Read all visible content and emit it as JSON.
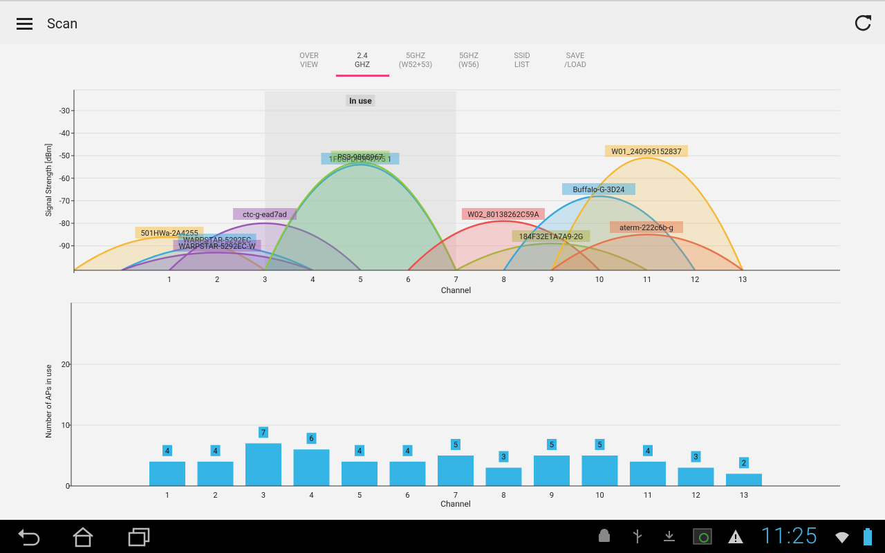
{
  "app": {
    "title": "Scan"
  },
  "tabs": [
    {
      "line1": "OVER",
      "line2": "VIEW",
      "active": false
    },
    {
      "line1": "2.4",
      "line2": "GHZ",
      "active": true
    },
    {
      "line1": "5GHZ",
      "line2": "(W52+53)",
      "active": false
    },
    {
      "line1": "5GHZ",
      "line2": "(W56)",
      "active": false
    },
    {
      "line1": "SSID",
      "line2": "LIST",
      "active": false
    },
    {
      "line1": "SAVE",
      "line2": "/LOAD",
      "active": false
    }
  ],
  "signal_chart": {
    "in_use_label": "In use",
    "in_use_range": [
      3,
      7
    ],
    "ylabel": "Signal Strength [dBm]",
    "xlabel": "Channel",
    "y_ticks": [
      -30,
      -40,
      -50,
      -60,
      -70,
      -80,
      -90
    ],
    "x_ticks": [
      1,
      2,
      3,
      4,
      5,
      6,
      7,
      8,
      9,
      10,
      11,
      12,
      13
    ]
  },
  "ap_chart": {
    "ylabel": "Number of APs in use",
    "xlabel": "Channel",
    "y_ticks": [
      0,
      10,
      20
    ]
  },
  "chart_data": [
    {
      "type": "area",
      "xlabel": "Channel",
      "ylabel": "Signal Strength [dBm]",
      "ylim": [
        -100,
        -20
      ],
      "series": [
        {
          "name": "501HWa-2A4255",
          "channel": 1,
          "dbm": -86,
          "color": "#f7b733"
        },
        {
          "name": "WARPSTAR-5292EC",
          "channel": 2,
          "dbm": -90,
          "color": "#35a8e0"
        },
        {
          "name": "WARPSTAR-5292EC-W",
          "channel": 2,
          "dbm": -93,
          "color": "#9b59b6"
        },
        {
          "name": "ctc-g-ead7ad",
          "channel": 3,
          "dbm": -80,
          "color": "#9b59b6"
        },
        {
          "name": "1F0CFDF0F4775 1",
          "channel": 5,
          "dbm": -54,
          "color": "#35a8e0"
        },
        {
          "name": "PS3-9868967",
          "channel": 5,
          "dbm": -53,
          "color": "#8dc63f"
        },
        {
          "name": "W02_80138262C59A",
          "channel": 8,
          "dbm": -79,
          "color": "#f04e4e"
        },
        {
          "name": "184F32E1A7A9-2G",
          "channel": 9,
          "dbm": -89,
          "color": "#a9b23a"
        },
        {
          "name": "Buffalo-G-3D24",
          "channel": 10,
          "dbm": -68,
          "color": "#35a8e0"
        },
        {
          "name": "W01_240995152837",
          "channel": 11,
          "dbm": -51,
          "color": "#f7b733"
        },
        {
          "name": "aterm-222c6b-g",
          "channel": 11,
          "dbm": -85,
          "color": "#e8734a"
        }
      ]
    },
    {
      "type": "bar",
      "xlabel": "Channel",
      "ylabel": "Number of APs in use",
      "ylim": [
        0,
        30
      ],
      "categories": [
        1,
        2,
        3,
        4,
        5,
        6,
        7,
        8,
        9,
        10,
        11,
        12,
        13
      ],
      "values": [
        4,
        4,
        7,
        6,
        4,
        4,
        5,
        3,
        5,
        5,
        4,
        3,
        2
      ],
      "color": "#35b4e6"
    }
  ],
  "statusbar": {
    "time": "11:25"
  },
  "colors": {
    "accent": "#e8437c",
    "bar": "#35b4e6",
    "clock": "#3fb8e8"
  }
}
